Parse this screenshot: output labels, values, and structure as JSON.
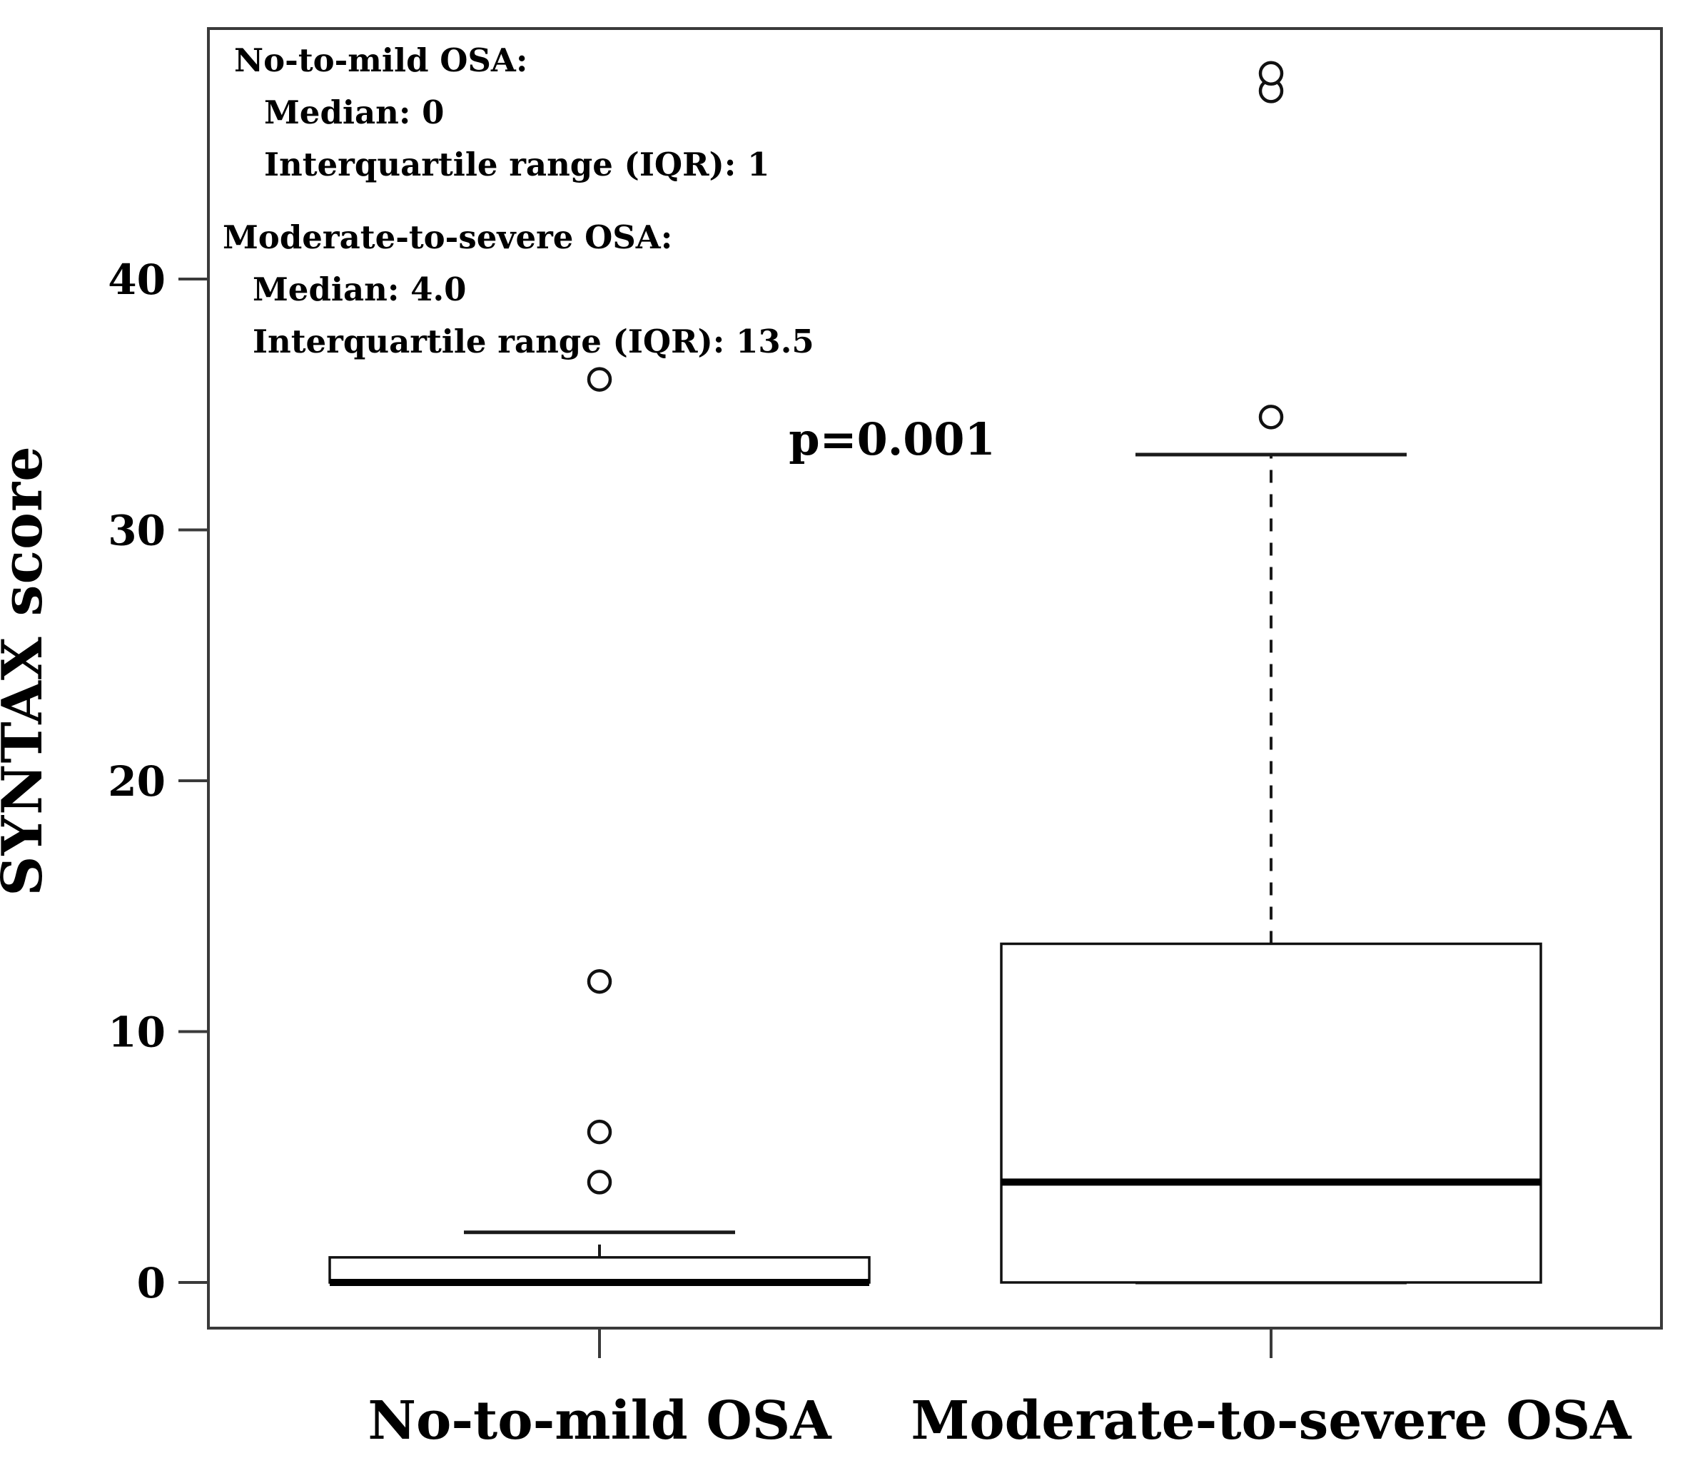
{
  "chart_data": {
    "type": "boxplot",
    "title": "",
    "xlabel": "",
    "ylabel": "SYNTAX score",
    "yticks": [
      0,
      10,
      20,
      30,
      40
    ],
    "ylim": [
      -1.7,
      50.0
    ],
    "grid": false,
    "legend": "none",
    "categories": [
      "No-to-mild OSA",
      "Moderate-to-severe OSA"
    ],
    "boxes": [
      {
        "category": "No-to-mild OSA",
        "q1": 0,
        "median": 0,
        "q3": 1,
        "iqr": 1,
        "whisker_low": 0,
        "whisker_high": 2,
        "outliers": [
          4,
          6,
          12,
          36
        ]
      },
      {
        "category": "Moderate-to-severe OSA",
        "q1": 0,
        "median": 4.0,
        "q3": 13.5,
        "iqr": 13.5,
        "whisker_low": 0,
        "whisker_high": 33,
        "outliers": [
          34.5,
          47.5,
          48.2
        ]
      }
    ],
    "annotations": {
      "p_value": "p=0.001",
      "stats_blocks": [
        {
          "title": "No-to-mild OSA:",
          "lines": [
            "Median: 0",
            "Interquartile range (IQR): 1"
          ]
        },
        {
          "title": "Moderate-to-severe OSA:",
          "lines": [
            "Median: 4.0",
            "Interquartile range (IQR): 13.5"
          ]
        }
      ]
    },
    "colors": {
      "line": "#1a1a1a",
      "border": "#3a3a3a",
      "box_fill": "#ffffff",
      "background": "#ffffff"
    }
  }
}
